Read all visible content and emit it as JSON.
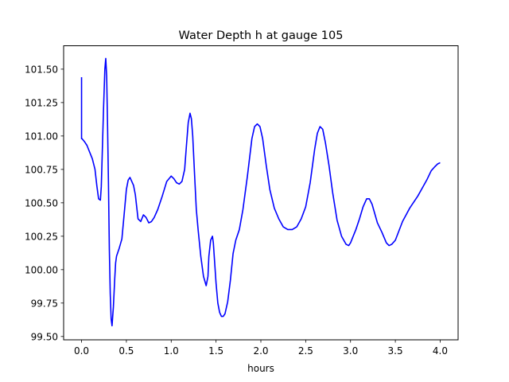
{
  "chart_data": {
    "type": "line",
    "title": "Water Depth h at gauge 105",
    "xlabel": "hours",
    "ylabel": "",
    "xlim": [
      -0.2,
      4.2
    ],
    "ylim": [
      99.475,
      101.675
    ],
    "xticks": [
      0.0,
      0.5,
      1.0,
      1.5,
      2.0,
      2.5,
      3.0,
      3.5,
      4.0
    ],
    "xtick_labels": [
      "0.0",
      "0.5",
      "1.0",
      "1.5",
      "2.0",
      "2.5",
      "3.0",
      "3.5",
      "4.0"
    ],
    "yticks": [
      99.5,
      99.75,
      100.0,
      100.25,
      100.5,
      100.75,
      101.0,
      101.25,
      101.5
    ],
    "ytick_labels": [
      "99.50",
      "99.75",
      "100.00",
      "100.25",
      "100.50",
      "100.75",
      "101.00",
      "101.25",
      "101.50"
    ],
    "grid": false,
    "line_color": "#0000ff",
    "series": [
      {
        "name": "",
        "x": [
          0.0,
          0.0,
          0.005,
          0.03,
          0.06,
          0.09,
          0.12,
          0.15,
          0.17,
          0.19,
          0.21,
          0.22,
          0.23,
          0.245,
          0.26,
          0.27,
          0.28,
          0.29,
          0.3,
          0.31,
          0.32,
          0.33,
          0.34,
          0.355,
          0.37,
          0.38,
          0.39,
          0.4,
          0.42,
          0.45,
          0.48,
          0.5,
          0.52,
          0.54,
          0.56,
          0.58,
          0.6,
          0.63,
          0.66,
          0.69,
          0.72,
          0.75,
          0.78,
          0.81,
          0.85,
          0.9,
          0.95,
          1.0,
          1.03,
          1.06,
          1.09,
          1.12,
          1.15,
          1.17,
          1.19,
          1.21,
          1.225,
          1.24,
          1.26,
          1.28,
          1.3,
          1.33,
          1.36,
          1.39,
          1.41,
          1.42,
          1.44,
          1.46,
          1.47,
          1.48,
          1.5,
          1.52,
          1.54,
          1.56,
          1.58,
          1.6,
          1.63,
          1.66,
          1.69,
          1.72,
          1.76,
          1.8,
          1.85,
          1.9,
          1.93,
          1.96,
          1.99,
          2.02,
          2.06,
          2.1,
          2.15,
          2.2,
          2.25,
          2.3,
          2.35,
          2.4,
          2.45,
          2.5,
          2.55,
          2.6,
          2.63,
          2.66,
          2.69,
          2.72,
          2.76,
          2.8,
          2.85,
          2.9,
          2.95,
          2.98,
          3.0,
          3.03,
          3.06,
          3.1,
          3.14,
          3.18,
          3.21,
          3.24,
          3.27,
          3.3,
          3.35,
          3.4,
          3.43,
          3.46,
          3.5,
          3.54,
          3.58,
          3.62,
          3.66,
          3.7,
          3.75,
          3.8,
          3.85,
          3.9,
          3.94,
          3.97,
          4.0
        ],
        "values": [
          101.44,
          100.98,
          100.98,
          100.96,
          100.93,
          100.88,
          100.83,
          100.75,
          100.63,
          100.53,
          100.52,
          100.62,
          100.85,
          101.2,
          101.5,
          101.58,
          101.45,
          101.08,
          100.65,
          100.15,
          99.82,
          99.63,
          99.58,
          99.72,
          99.93,
          100.05,
          100.1,
          100.12,
          100.16,
          100.23,
          100.45,
          100.6,
          100.67,
          100.69,
          100.66,
          100.63,
          100.56,
          100.38,
          100.36,
          100.41,
          100.39,
          100.35,
          100.36,
          100.39,
          100.45,
          100.55,
          100.66,
          100.7,
          100.68,
          100.65,
          100.64,
          100.66,
          100.75,
          100.93,
          101.1,
          101.17,
          101.13,
          101.0,
          100.72,
          100.45,
          100.3,
          100.1,
          99.95,
          99.88,
          99.95,
          100.1,
          100.22,
          100.25,
          100.2,
          100.1,
          99.9,
          99.75,
          99.68,
          99.65,
          99.65,
          99.67,
          99.76,
          99.92,
          100.12,
          100.22,
          100.3,
          100.45,
          100.7,
          100.98,
          101.07,
          101.09,
          101.07,
          100.98,
          100.78,
          100.6,
          100.46,
          100.38,
          100.32,
          100.3,
          100.3,
          100.32,
          100.38,
          100.47,
          100.65,
          100.9,
          101.02,
          101.07,
          101.05,
          100.95,
          100.78,
          100.58,
          100.37,
          100.25,
          100.19,
          100.18,
          100.2,
          100.25,
          100.3,
          100.38,
          100.47,
          100.53,
          100.53,
          100.49,
          100.42,
          100.35,
          100.28,
          100.2,
          100.18,
          100.19,
          100.22,
          100.29,
          100.36,
          100.41,
          100.46,
          100.5,
          100.55,
          100.61,
          100.67,
          100.74,
          100.77,
          100.79,
          100.8
        ]
      }
    ]
  }
}
